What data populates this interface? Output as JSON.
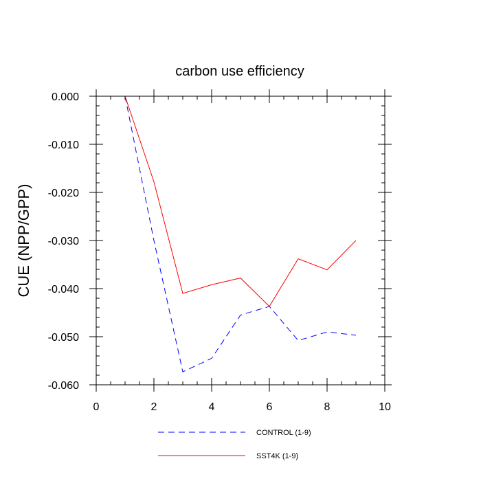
{
  "chart_data": {
    "type": "line",
    "title": "carbon use efficiency",
    "xlabel": "",
    "ylabel": "CUE  (NPP/GPP)",
    "xlim": [
      0,
      10
    ],
    "ylim": [
      -0.06,
      0.0
    ],
    "xticks": [
      0,
      2,
      4,
      6,
      8,
      10
    ],
    "xtick_labels": [
      "0",
      "2",
      "4",
      "6",
      "8",
      "10"
    ],
    "yticks": [
      0.0,
      -0.01,
      -0.02,
      -0.03,
      -0.04,
      -0.05,
      -0.06
    ],
    "ytick_labels": [
      "0.000",
      "-0.010",
      "-0.020",
      "-0.030",
      "-0.040",
      "-0.050",
      "-0.060"
    ],
    "grid": false,
    "legend_position": "bottom",
    "series": [
      {
        "name": "CONTROL (1-9)",
        "color": "#0000ff",
        "style": "dashed",
        "x": [
          1,
          2,
          3,
          4,
          5,
          6,
          7,
          8,
          9
        ],
        "y": [
          0.0,
          -0.03,
          -0.0573,
          -0.0545,
          -0.0455,
          -0.0437,
          -0.0508,
          -0.049,
          -0.0497
        ]
      },
      {
        "name": "SST4K (1-9)",
        "color": "#ff0000",
        "style": "solid",
        "x": [
          1,
          2,
          3,
          4,
          5,
          6,
          7,
          8,
          9
        ],
        "y": [
          0.0,
          -0.0178,
          -0.041,
          -0.0392,
          -0.0378,
          -0.0437,
          -0.0338,
          -0.0361,
          -0.03
        ]
      }
    ]
  }
}
